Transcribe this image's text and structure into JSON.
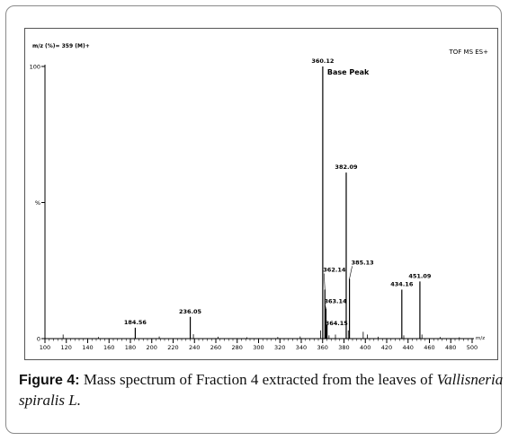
{
  "chart_data": {
    "type": "bar",
    "subtype": "mass-spectrum-stick",
    "header_left": "m/z (%)= 359 (M)+",
    "header_right": "TOF MS ES+",
    "xlabel": "m/z",
    "ylabel": "%",
    "xlim": [
      100,
      500
    ],
    "ylim": [
      0,
      100
    ],
    "x_ticks": [
      100,
      120,
      140,
      160,
      180,
      200,
      220,
      240,
      260,
      280,
      300,
      320,
      340,
      360,
      380,
      400,
      420,
      440,
      460,
      480,
      500
    ],
    "y_ticks": [
      0,
      100
    ],
    "y_tick_labels": [
      "0",
      "100"
    ],
    "mid_marker_label": "%",
    "base_peak_label": "Base Peak",
    "peaks": [
      {
        "mz": 184.56,
        "label": "184.56",
        "intensity": 4
      },
      {
        "mz": 236.05,
        "label": "236.05",
        "intensity": 8
      },
      {
        "mz": 360.12,
        "label": "360.12",
        "intensity": 100,
        "base_peak": true
      },
      {
        "mz": 362.14,
        "label": "362.14",
        "intensity": 18
      },
      {
        "mz": 363.14,
        "label": "363.14",
        "intensity": 11
      },
      {
        "mz": 364.15,
        "label": "364.15",
        "intensity": 5
      },
      {
        "mz": 382.09,
        "label": "382.09",
        "intensity": 61
      },
      {
        "mz": 385.13,
        "label": "385.13",
        "intensity": 22
      },
      {
        "mz": 434.16,
        "label": "434.16",
        "intensity": 18
      },
      {
        "mz": 451.09,
        "label": "451.09",
        "intensity": 21
      }
    ],
    "unlabeled_peaks": [
      {
        "mz": 117,
        "intensity": 1.5
      },
      {
        "mz": 150,
        "intensity": 0.6
      },
      {
        "mz": 207,
        "intensity": 0.8
      },
      {
        "mz": 239,
        "intensity": 1.6
      },
      {
        "mz": 262,
        "intensity": 0.7
      },
      {
        "mz": 289,
        "intensity": 0.5
      },
      {
        "mz": 318,
        "intensity": 0.6
      },
      {
        "mz": 339,
        "intensity": 0.8
      },
      {
        "mz": 358,
        "intensity": 3
      },
      {
        "mz": 366,
        "intensity": 1.2
      },
      {
        "mz": 372,
        "intensity": 1.5
      },
      {
        "mz": 384,
        "intensity": 3
      },
      {
        "mz": 398,
        "intensity": 2.5
      },
      {
        "mz": 402,
        "intensity": 1.5
      },
      {
        "mz": 412,
        "intensity": 0.7
      },
      {
        "mz": 436,
        "intensity": 1.2
      },
      {
        "mz": 453,
        "intensity": 1.5
      },
      {
        "mz": 470,
        "intensity": 0.6
      },
      {
        "mz": 488,
        "intensity": 0.5
      }
    ]
  },
  "caption": {
    "label": "Figure 4:",
    "text": " Mass spectrum of Fraction 4 extracted from the leaves of ",
    "species": "Vallisneria spiralis L."
  }
}
